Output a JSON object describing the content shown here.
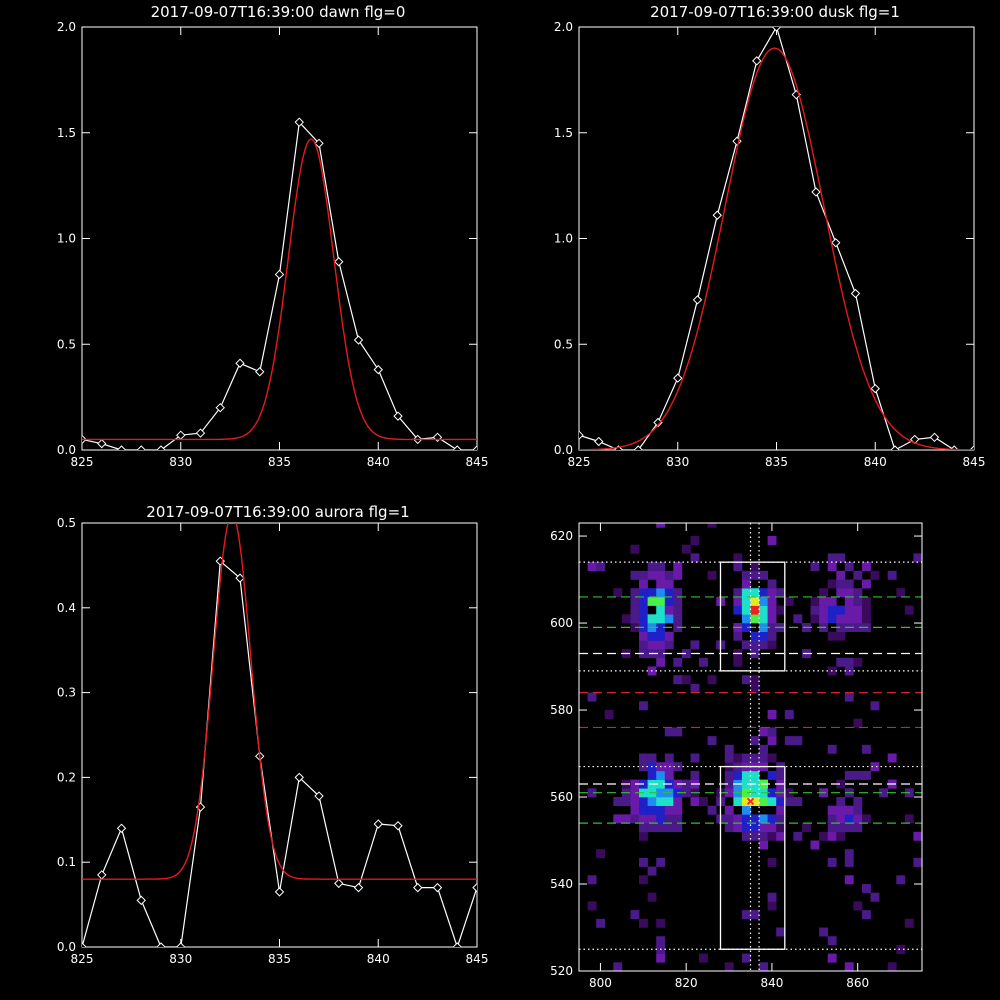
{
  "chart_data": [
    {
      "id": "dawn",
      "type": "line",
      "title": "2017-09-07T16:39:00 dawn flg=0",
      "xlim": [
        825,
        845
      ],
      "ylim": [
        0,
        2.0
      ],
      "xticks": [
        825,
        830,
        835,
        840,
        845
      ],
      "yticks": [
        0.0,
        0.5,
        1.0,
        1.5,
        2.0
      ],
      "ytick_labels": [
        "0.0",
        "0.5",
        "1.0",
        "1.5",
        "2.0"
      ],
      "series": [
        {
          "style": "data",
          "color": "#ffffff",
          "marker": "diamond",
          "x": [
            825,
            826,
            827,
            828,
            829,
            830,
            831,
            832,
            833,
            834,
            835,
            836,
            837,
            838,
            839,
            840,
            841,
            842,
            843,
            844,
            845
          ],
          "y": [
            0.05,
            0.03,
            0.0,
            0.0,
            0.0,
            0.07,
            0.08,
            0.2,
            0.41,
            0.37,
            0.83,
            1.55,
            1.45,
            0.89,
            0.52,
            0.38,
            0.16,
            0.05,
            0.06,
            0.0,
            0.0
          ]
        },
        {
          "style": "fit",
          "color": "#e41a1c",
          "gauss": {
            "baseline": 0.05,
            "amp": 1.42,
            "center": 836.6,
            "sigma": 1.15
          }
        }
      ]
    },
    {
      "id": "dusk",
      "type": "line",
      "title": "2017-09-07T16:39:00 dusk flg=1",
      "xlim": [
        825,
        845
      ],
      "ylim": [
        0,
        2.0
      ],
      "xticks": [
        825,
        830,
        835,
        840,
        845
      ],
      "yticks": [
        0.0,
        0.5,
        1.0,
        1.5,
        2.0
      ],
      "ytick_labels": [
        "0.0",
        "0.5",
        "1.0",
        "1.5",
        "2.0"
      ],
      "series": [
        {
          "style": "data",
          "color": "#ffffff",
          "marker": "diamond",
          "x": [
            825,
            826,
            827,
            828,
            829,
            830,
            831,
            832,
            833,
            834,
            835,
            836,
            837,
            838,
            839,
            840,
            841,
            842,
            843,
            844,
            845
          ],
          "y": [
            0.07,
            0.04,
            0.0,
            0.0,
            0.13,
            0.34,
            0.71,
            1.11,
            1.46,
            1.84,
            2.0,
            1.68,
            1.22,
            0.98,
            0.74,
            0.29,
            0.0,
            0.05,
            0.06,
            0.0,
            0.0
          ]
        },
        {
          "style": "fit",
          "color": "#e41a1c",
          "gauss": {
            "baseline": 0.0,
            "amp": 1.9,
            "center": 834.9,
            "sigma": 2.5
          }
        }
      ]
    },
    {
      "id": "aurora",
      "type": "line",
      "title": "2017-09-07T16:39:00 aurora flg=1",
      "xlim": [
        825,
        845
      ],
      "ylim": [
        0,
        0.5
      ],
      "xticks": [
        825,
        830,
        835,
        840,
        845
      ],
      "yticks": [
        0.0,
        0.1,
        0.2,
        0.3,
        0.4,
        0.5
      ],
      "ytick_labels": [
        "0.0",
        "0.1",
        "0.2",
        "0.3",
        "0.4",
        "0.5"
      ],
      "series": [
        {
          "style": "data",
          "color": "#ffffff",
          "marker": "diamond",
          "x": [
            825,
            826,
            827,
            828,
            829,
            830,
            831,
            832,
            833,
            834,
            835,
            836,
            837,
            838,
            839,
            840,
            841,
            842,
            843,
            844,
            845
          ],
          "y": [
            0.0,
            0.085,
            0.14,
            0.055,
            0.0,
            0.0,
            0.165,
            0.455,
            0.435,
            0.225,
            0.065,
            0.2,
            0.178,
            0.075,
            0.07,
            0.145,
            0.143,
            0.07,
            0.07,
            0.0,
            0.07
          ]
        },
        {
          "style": "fit",
          "color": "#e41a1c",
          "gauss": {
            "baseline": 0.08,
            "amp": 0.43,
            "center": 832.6,
            "sigma": 0.95
          }
        }
      ]
    },
    {
      "id": "image",
      "type": "heatmap",
      "title": "",
      "xlim": [
        795,
        875
      ],
      "ylim": [
        520,
        623
      ],
      "xticks": [
        800,
        820,
        840,
        860
      ],
      "yticks": [
        520,
        540,
        560,
        580,
        600,
        620
      ],
      "colormap": [
        "#3a0a5c",
        "#4a1a88",
        "#6a1aa8",
        "#2020c8",
        "#1e8cf0",
        "#1ee0c8",
        "#48f048",
        "#e8e820",
        "#f02020"
      ],
      "blobs": [
        {
          "x": 813,
          "y": 603,
          "w": 3,
          "h": 6,
          "peak": 0.75
        },
        {
          "x": 836,
          "y": 603,
          "w": 3,
          "h": 5,
          "peak": 0.9
        },
        {
          "x": 813,
          "y": 561,
          "w": 4,
          "h": 5,
          "peak": 0.75
        },
        {
          "x": 836,
          "y": 560,
          "w": 4,
          "h": 5,
          "peak": 1.0
        },
        {
          "x": 856,
          "y": 603,
          "w": 4,
          "h": 4,
          "peak": 0.45
        },
        {
          "x": 857,
          "y": 556,
          "w": 3,
          "h": 3,
          "peak": 0.45
        }
      ],
      "rects": [
        {
          "x0": 828,
          "x1": 843,
          "y0": 525,
          "y1": 567
        },
        {
          "x0": 828,
          "x1": 843,
          "y0": 589,
          "y1": 614
        }
      ],
      "vlines": [
        {
          "x": 835,
          "style": "dotted",
          "color": "#ffffff"
        },
        {
          "x": 837,
          "style": "dotted",
          "color": "#ffffff"
        }
      ],
      "hlines": [
        {
          "y": 614,
          "style": "dotted",
          "color": "#ffffff"
        },
        {
          "y": 606,
          "style": "dashed",
          "color": "#31c12b"
        },
        {
          "y": 599,
          "style": "dashed",
          "color": "#31c12b"
        },
        {
          "y": 593,
          "style": "dashed",
          "color": "#ffffff"
        },
        {
          "y": 589,
          "style": "dotted",
          "color": "#ffffff"
        },
        {
          "y": 584,
          "style": "dashed",
          "color": "#d2232a"
        },
        {
          "y": 576,
          "style": "dashed",
          "color": "#d2232a"
        },
        {
          "y": 567,
          "style": "dotted",
          "color": "#ffffff"
        },
        {
          "y": 563,
          "style": "dashed",
          "color": "#ffffff"
        },
        {
          "y": 561,
          "style": "dashed",
          "color": "#31c12b"
        },
        {
          "y": 554,
          "style": "dashed",
          "color": "#31c12b"
        },
        {
          "y": 525,
          "style": "dotted",
          "color": "#ffffff"
        }
      ],
      "marker": {
        "x": 835,
        "y": 559,
        "color": "#ff2020"
      }
    }
  ]
}
